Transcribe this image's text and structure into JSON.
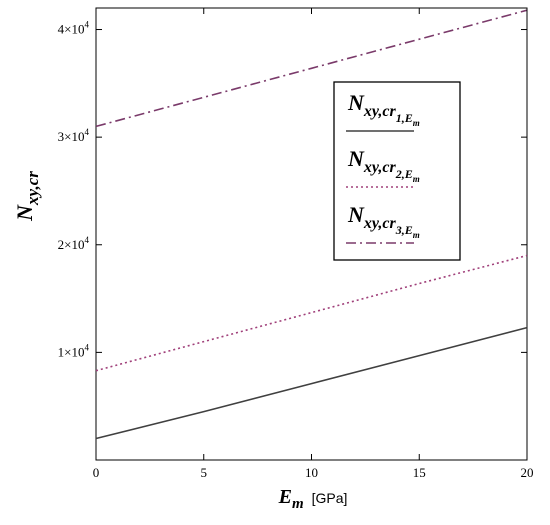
{
  "chart_data": {
    "type": "line",
    "xlabel": {
      "main": "E",
      "sub": "m",
      "unit": "[GPa]"
    },
    "ylabel": {
      "main": "N",
      "sub": "xy,cr"
    },
    "xlim": [
      0,
      20
    ],
    "ylim": [
      0,
      42000
    ],
    "x_ticks": [
      0,
      5,
      10,
      15,
      20
    ],
    "y_ticks": [
      {
        "value": 10000,
        "mantissa": "1×10",
        "exp": "4"
      },
      {
        "value": 20000,
        "mantissa": "2×10",
        "exp": "4"
      },
      {
        "value": 30000,
        "mantissa": "3×10",
        "exp": "4"
      },
      {
        "value": 40000,
        "mantissa": "4×10",
        "exp": "4"
      }
    ],
    "grid": false,
    "legend_position": "top-right",
    "series": [
      {
        "legend": {
          "main": "N",
          "sub1": "xy,cr",
          "sub2": "1,E",
          "sub3": "m"
        },
        "color": "#404040",
        "style": "solid",
        "x": [
          0,
          5,
          10,
          15,
          20
        ],
        "y": [
          2000,
          4500,
          7100,
          9700,
          12300
        ]
      },
      {
        "legend": {
          "main": "N",
          "sub1": "xy,cr",
          "sub2": "2,E",
          "sub3": "m"
        },
        "color": "#a0407a",
        "style": "dotted",
        "x": [
          0,
          5,
          10,
          15,
          20
        ],
        "y": [
          8300,
          11000,
          13700,
          16400,
          19000
        ]
      },
      {
        "legend": {
          "main": "N",
          "sub1": "xy,cr",
          "sub2": "3,E",
          "sub3": "m"
        },
        "color": "#7a3a6a",
        "style": "dashdot",
        "x": [
          0,
          5,
          10,
          15,
          20
        ],
        "y": [
          31000,
          33700,
          36400,
          39100,
          41800
        ]
      }
    ]
  }
}
